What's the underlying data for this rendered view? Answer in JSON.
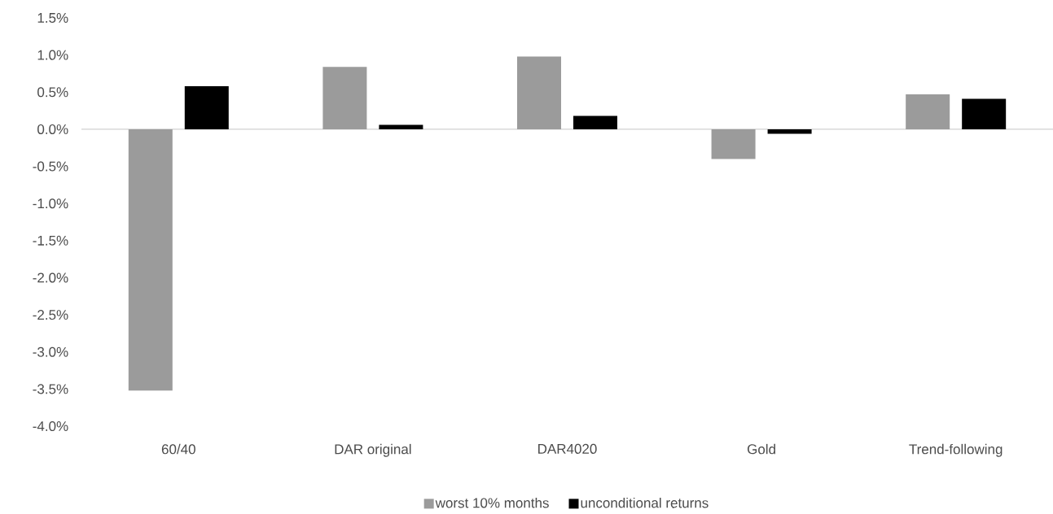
{
  "chart_data": {
    "type": "bar",
    "categories": [
      "60/40",
      "DAR original",
      "DAR4020",
      "Gold",
      "Trend-following"
    ],
    "series": [
      {
        "name": "worst 10% months",
        "color": "#9b9b9b",
        "values": [
          -3.52,
          0.84,
          0.98,
          -0.4,
          0.47
        ]
      },
      {
        "name": "unconditional returns",
        "color": "#000000",
        "values": [
          0.58,
          0.06,
          0.18,
          -0.06,
          0.41
        ]
      }
    ],
    "ylim": [
      -4.0,
      1.5
    ],
    "yticks": [
      {
        "value": 1.5,
        "label": "1.5%"
      },
      {
        "value": 1.0,
        "label": "1.0%"
      },
      {
        "value": 0.5,
        "label": "0.5%"
      },
      {
        "value": 0.0,
        "label": "0.0%"
      },
      {
        "value": -0.5,
        "label": "-0.5%"
      },
      {
        "value": -1.0,
        "label": "-1.0%"
      },
      {
        "value": -1.5,
        "label": "-1.5%"
      },
      {
        "value": -2.0,
        "label": "-2.0%"
      },
      {
        "value": -2.5,
        "label": "-2.5%"
      },
      {
        "value": -3.0,
        "label": "-3.0%"
      },
      {
        "value": -3.5,
        "label": "-3.5%"
      },
      {
        "value": -4.0,
        "label": "-4.0%"
      }
    ],
    "legend": "bottom"
  }
}
